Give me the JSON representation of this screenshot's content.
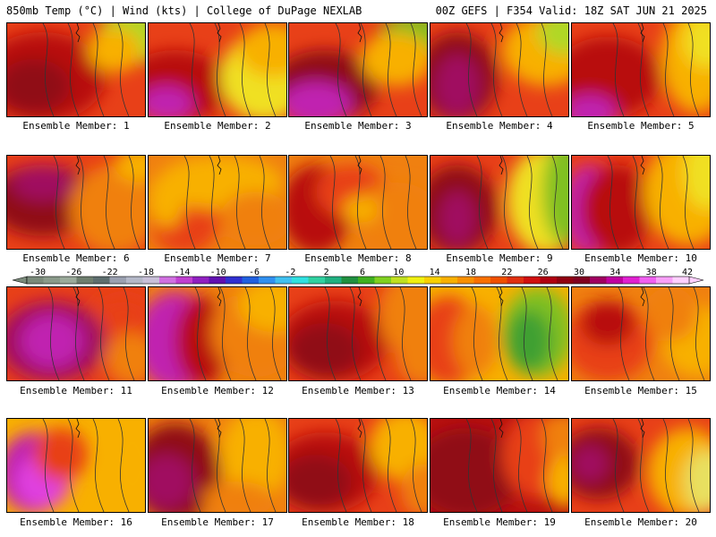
{
  "header": {
    "left_text": "850mb Temp (°C) | Wind (kts) | College of DuPage NEXLAB",
    "right_text": "00Z GEFS | F354 Valid: 18Z SAT JUN 21 2025"
  },
  "colorbar": {
    "tick_labels": [
      "-30",
      "-26",
      "-22",
      "-18",
      "-14",
      "-10",
      "-6",
      "-2",
      "2",
      "6",
      "10",
      "14",
      "18",
      "22",
      "26",
      "30",
      "34",
      "38",
      "42"
    ],
    "colors": [
      "#7a8a7a",
      "#8a9a8a",
      "#9aaa9a",
      "#6e7e6e",
      "#5e6e6e",
      "#9aa0b0",
      "#b4b8c8",
      "#c8c0d8",
      "#d070e0",
      "#c040d0",
      "#9020c0",
      "#6010b0",
      "#3030d0",
      "#2060e0",
      "#3090f0",
      "#40c0f0",
      "#30e0e0",
      "#30d0a0",
      "#20b080",
      "#209040",
      "#40b020",
      "#80d020",
      "#c0e020",
      "#f0f010",
      "#f8d000",
      "#f8b000",
      "#f89000",
      "#f87000",
      "#f05000",
      "#e03010",
      "#d01010",
      "#b00010",
      "#900010",
      "#800020",
      "#a00060",
      "#c000a0",
      "#e020d0",
      "#f060f0",
      "#f8a0f8",
      "#ffd0ff"
    ]
  },
  "panels": [
    {
      "label": "Ensemble Member: 1"
    },
    {
      "label": "Ensemble Member: 2"
    },
    {
      "label": "Ensemble Member: 3"
    },
    {
      "label": "Ensemble Member: 4"
    },
    {
      "label": "Ensemble Member: 5"
    },
    {
      "label": "Ensemble Member: 6"
    },
    {
      "label": "Ensemble Member: 7"
    },
    {
      "label": "Ensemble Member: 8"
    },
    {
      "label": "Ensemble Member: 9"
    },
    {
      "label": "Ensemble Member: 10"
    },
    {
      "label": "Ensemble Member: 11"
    },
    {
      "label": "Ensemble Member: 12"
    },
    {
      "label": "Ensemble Member: 13"
    },
    {
      "label": "Ensemble Member: 14"
    },
    {
      "label": "Ensemble Member: 15"
    },
    {
      "label": "Ensemble Member: 16"
    },
    {
      "label": "Ensemble Member: 17"
    },
    {
      "label": "Ensemble Member: 18"
    },
    {
      "label": "Ensemble Member: 19"
    },
    {
      "label": "Ensemble Member: 20"
    }
  ]
}
